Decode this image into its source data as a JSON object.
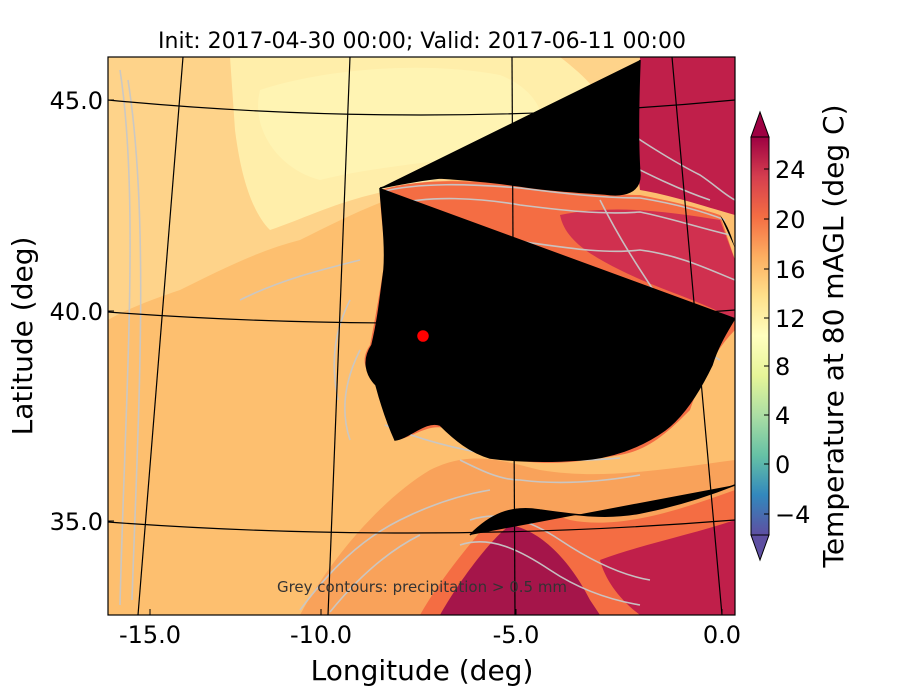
{
  "title": "Init: 2017-04-30 00:00; Valid: 2017-06-11 00:00",
  "xlabel": "Longitude (deg)",
  "ylabel": "Latitude (deg)",
  "xticks": [
    "-15.0",
    "-10.0",
    "-5.0",
    "0.0"
  ],
  "yticks": [
    "45.0",
    "40.0",
    "35.0"
  ],
  "annotation": "Grey contours: precipitation > 0.5 mm",
  "colorbar": {
    "label": "Temperature at 80 mAGL (deg C)",
    "ticks": [
      "24",
      "20",
      "16",
      "12",
      "8",
      "4",
      "0",
      "−4"
    ],
    "range": [
      -8,
      28
    ],
    "extend": "both",
    "colormap": "Spectral_r"
  },
  "marker": {
    "lon": -7.7,
    "lat": 39.3,
    "color": "#ff0000"
  },
  "map_extent": {
    "lon": [
      -16,
      0
    ],
    "lat": [
      32.5,
      46
    ]
  },
  "colors": {
    "ocean_warm": "#fdbf6f",
    "ocean_cool": "#fee090",
    "land_hot": "#c01f4a",
    "land_mid": "#f46d43",
    "coastline": "#000000",
    "precip_contour": "#c8c8c8"
  }
}
